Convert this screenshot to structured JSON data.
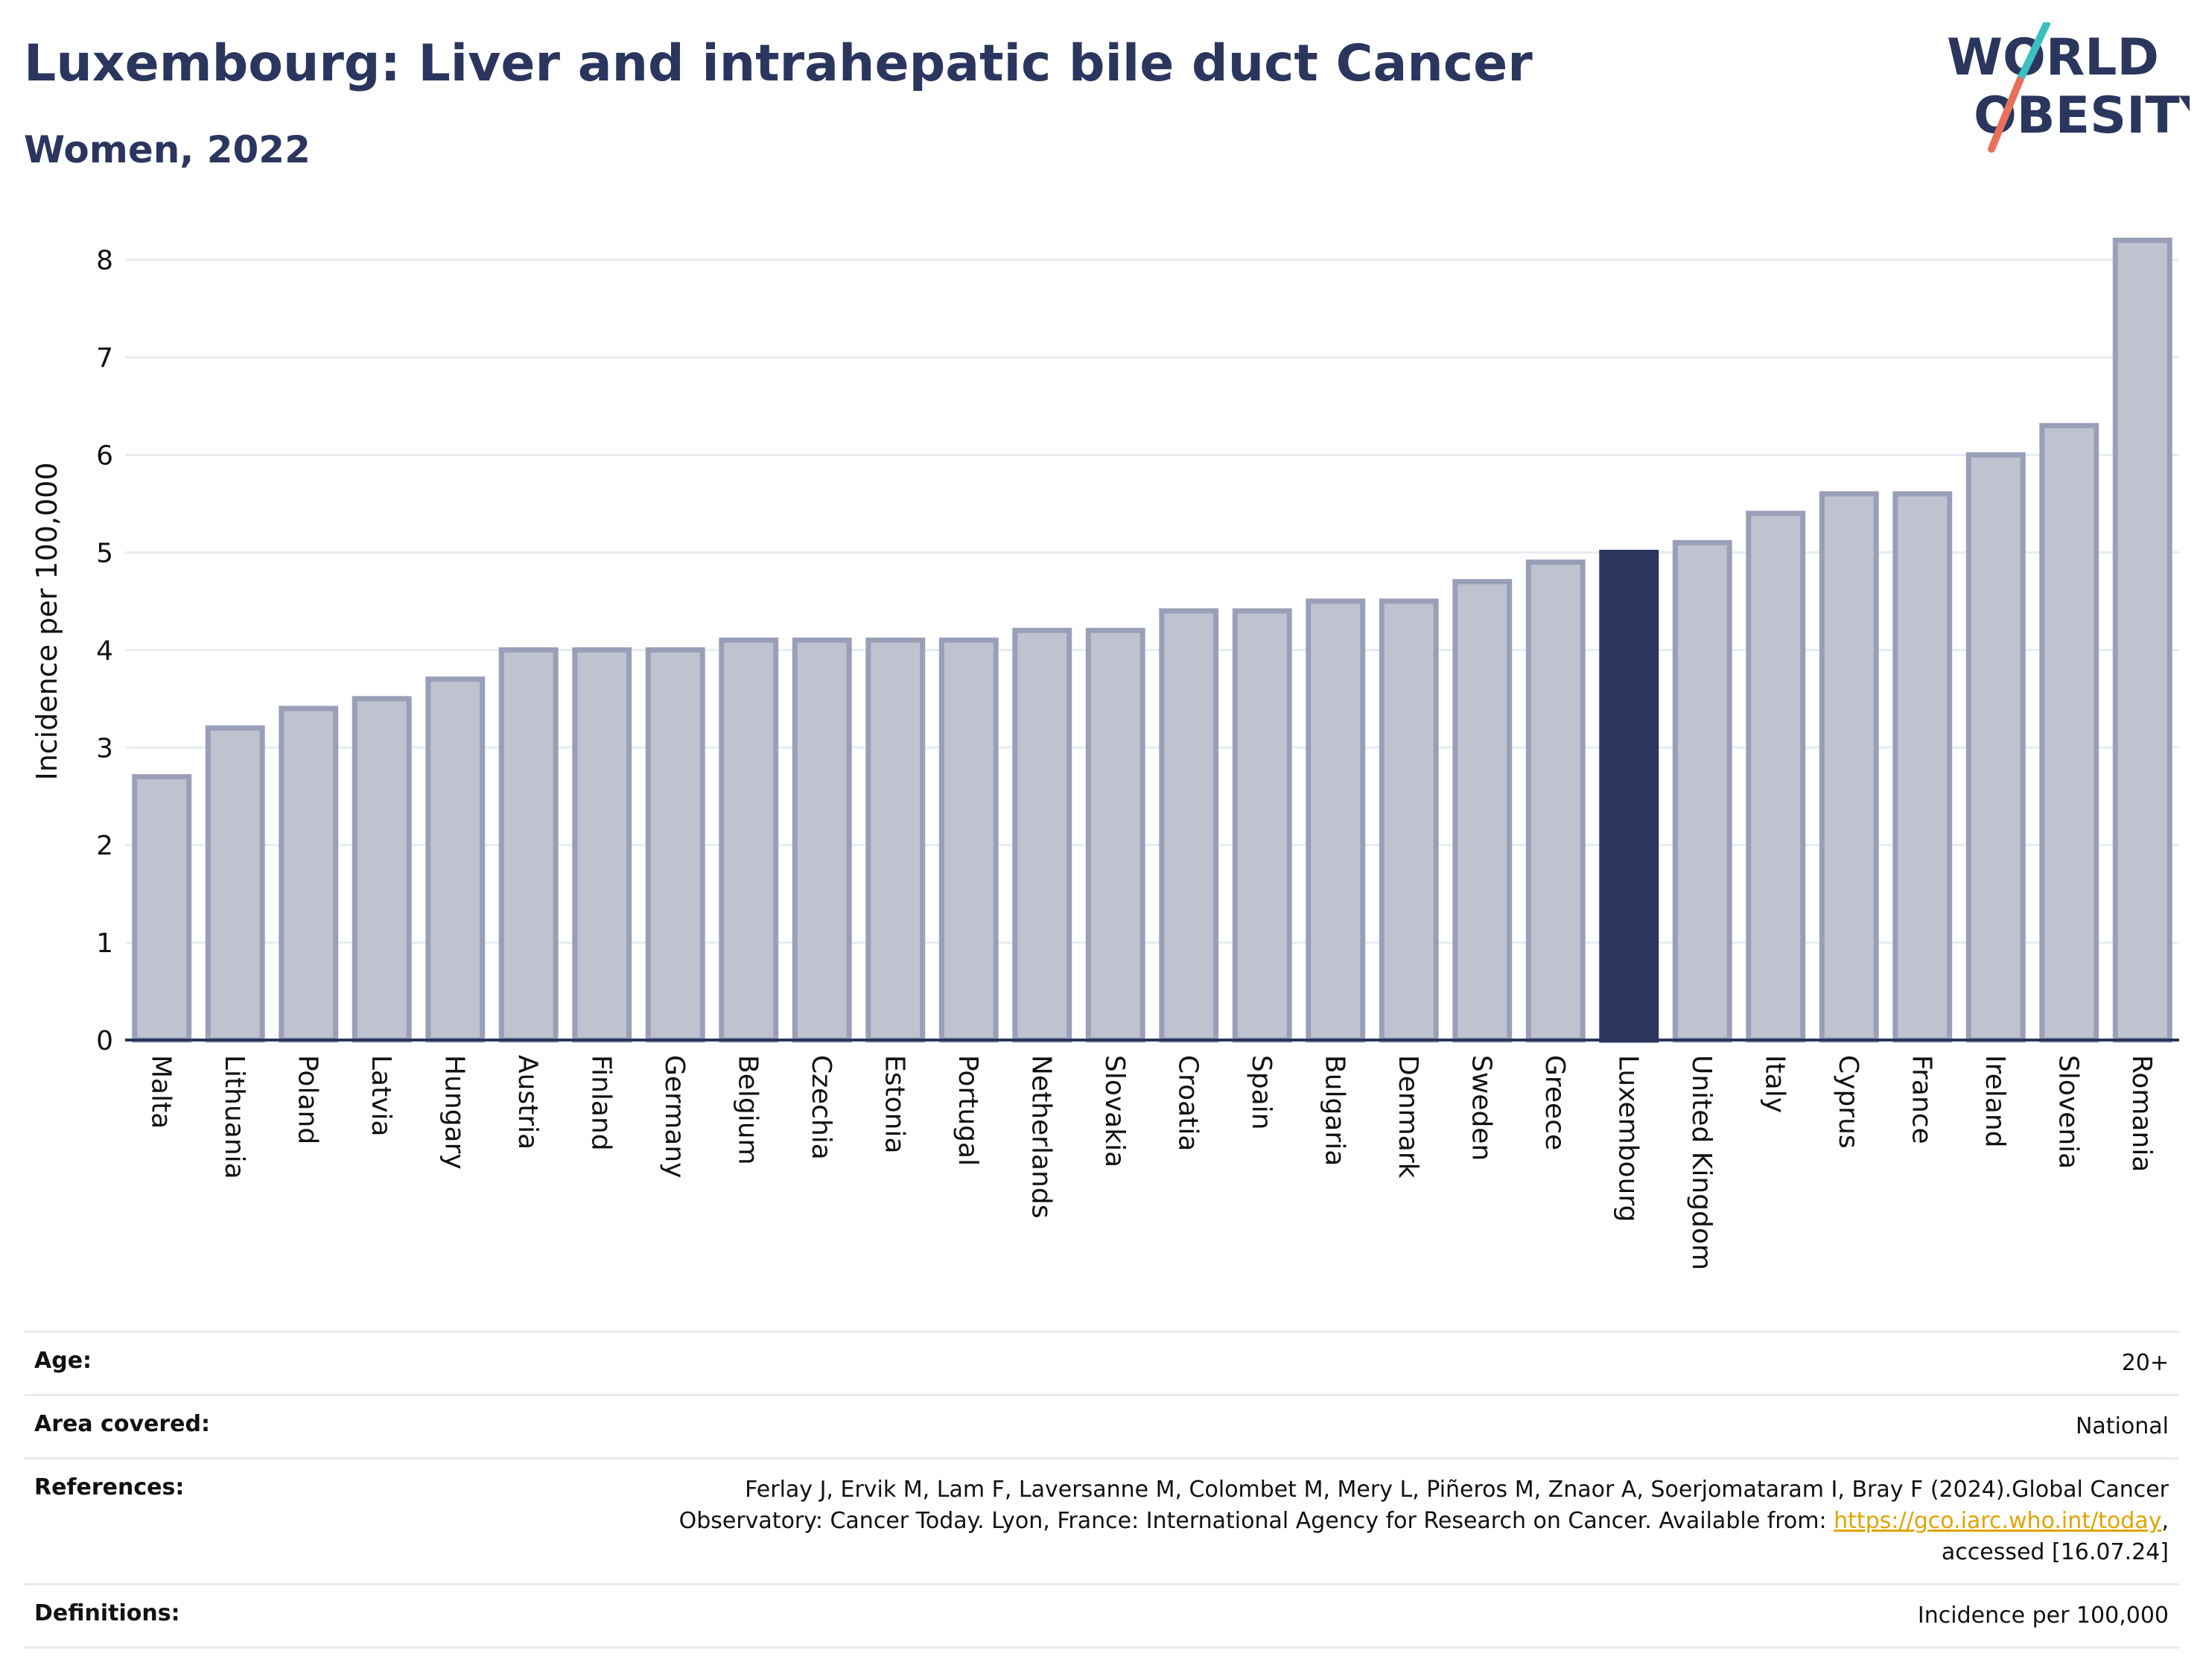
{
  "header": {
    "title": "Luxembourg: Liver and intrahepatic bile duct Cancer",
    "subtitle": "Women, 2022"
  },
  "logo": {
    "line1": "WORLD",
    "line2": "OBESITY",
    "colors": {
      "text": "#2b365f",
      "slash_teal": "#3bbfc1",
      "slash_coral": "#e8705a"
    }
  },
  "chart_data": {
    "type": "bar",
    "ylabel": "Incidence per 100,000",
    "ylim": [
      0,
      8.25
    ],
    "yticks": [
      0,
      1,
      2,
      3,
      4,
      5,
      6,
      7,
      8
    ],
    "grid": true,
    "highlight": "Luxembourg",
    "colors": {
      "bar": "#bfc2cf",
      "bar_border": "#9a9fb8",
      "highlight": "#2b365f"
    },
    "categories": [
      "Malta",
      "Lithuania",
      "Poland",
      "Latvia",
      "Hungary",
      "Austria",
      "Finland",
      "Germany",
      "Belgium",
      "Czechia",
      "Estonia",
      "Portugal",
      "Netherlands",
      "Slovakia",
      "Croatia",
      "Spain",
      "Bulgaria",
      "Denmark",
      "Sweden",
      "Greece",
      "Luxembourg",
      "United Kingdom",
      "Italy",
      "Cyprus",
      "France",
      "Ireland",
      "Slovenia",
      "Romania"
    ],
    "values": [
      2.7,
      3.2,
      3.4,
      3.5,
      3.7,
      4.0,
      4.0,
      4.0,
      4.1,
      4.1,
      4.1,
      4.1,
      4.2,
      4.2,
      4.4,
      4.4,
      4.5,
      4.5,
      4.7,
      4.9,
      5.0,
      5.1,
      5.4,
      5.6,
      5.6,
      6.0,
      6.3,
      8.2
    ]
  },
  "info": {
    "age_label": "Age:",
    "age_value": "20+",
    "area_label": "Area covered:",
    "area_value": "National",
    "references_label": "References:",
    "references_text_1": "Ferlay J, Ervik M, Lam F, Laversanne M, Colombet M, Mery L, Piñeros M, Znaor A, Soerjomataram I, Bray F (2024).Global Cancer Observatory: Cancer Today. Lyon, France: International Agency for Research on Cancer. Available from: ",
    "references_link": "https://gco.iarc.who.int/today",
    "references_text_2": ", accessed [16.07.24]",
    "definitions_label": "Definitions:",
    "definitions_value": "Incidence per 100,000"
  }
}
